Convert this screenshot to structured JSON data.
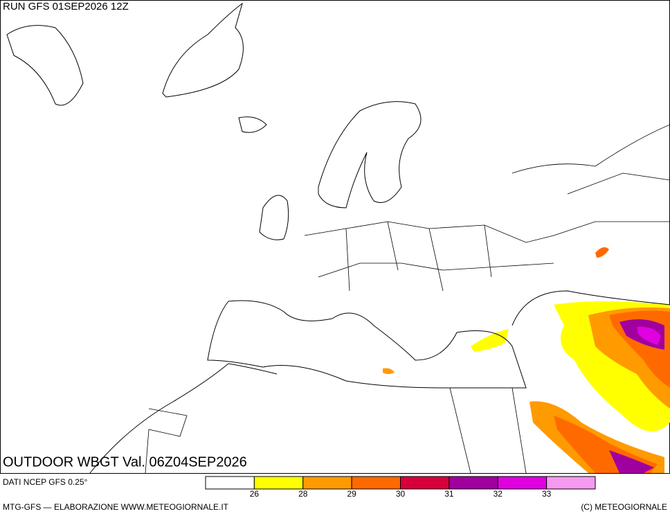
{
  "header": {
    "run": "RUN GFS 01SEP2026 12Z"
  },
  "map_title": "OUTDOOR WBGT Val. 06Z04SEP2026",
  "source": "DATI NCEP GFS 0.25°",
  "footer_left": "MTG-GFS — ELABORAZIONE WWW.METEOGIORNALE.IT",
  "footer_right": "(C) METEOGIORNALE",
  "legend": {
    "colors": [
      "#ffffff",
      "#ffff00",
      "#ff9a00",
      "#ff6a00",
      "#d8003a",
      "#a0009e",
      "#e000e0",
      "#f49af0"
    ],
    "ticks": [
      26,
      28,
      29,
      30,
      31,
      32,
      33
    ]
  }
}
